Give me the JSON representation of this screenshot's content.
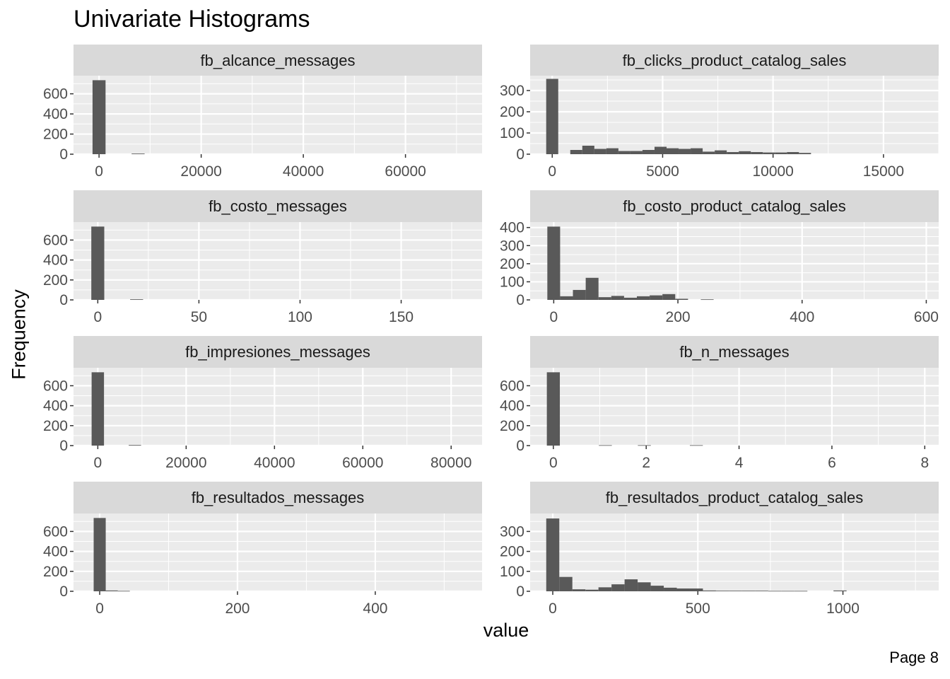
{
  "page": {
    "title": "Univariate Histograms",
    "page_label": "Page 8"
  },
  "chart_data": {
    "type": "bar",
    "title": "Univariate Histograms",
    "xlabel": "value",
    "ylabel": "Frequency",
    "layout": "4x2 facets",
    "facets": [
      {
        "name": "fb_alcance_messages",
        "xlim": [
          -5000,
          75000
        ],
        "ylim": [
          0,
          780
        ],
        "xticks": [
          0,
          20000,
          40000,
          60000
        ],
        "yticks": [
          0,
          200,
          400,
          600
        ],
        "bin_width": 2550,
        "bin_centers": [
          0,
          7650
        ],
        "counts": [
          735,
          6
        ]
      },
      {
        "name": "fb_clicks_product_catalog_sales",
        "xlim": [
          -1000,
          17500
        ],
        "ylim": [
          0,
          370
        ],
        "xticks": [
          0,
          5000,
          10000,
          15000
        ],
        "yticks": [
          0,
          100,
          200,
          300
        ],
        "bin_width": 545,
        "bin_centers": [
          0,
          545,
          1090,
          1635,
          2180,
          2725,
          3270,
          3815,
          4360,
          4905,
          5450,
          5995,
          6540,
          7085,
          7630,
          8175,
          8720,
          9265,
          9810,
          10355,
          10900,
          11445
        ],
        "counts": [
          355,
          0,
          20,
          40,
          25,
          28,
          15,
          15,
          20,
          35,
          28,
          25,
          28,
          12,
          18,
          10,
          14,
          10,
          8,
          8,
          10,
          6
        ]
      },
      {
        "name": "fb_costo_messages",
        "xlim": [
          -12,
          190
        ],
        "ylim": [
          0,
          780
        ],
        "xticks": [
          0,
          50,
          100,
          150
        ],
        "yticks": [
          0,
          200,
          400,
          600
        ],
        "bin_width": 6.4,
        "bin_centers": [
          0,
          19.2
        ],
        "counts": [
          735,
          6
        ]
      },
      {
        "name": "fb_costo_product_catalog_sales",
        "xlim": [
          -38,
          620
        ],
        "ylim": [
          0,
          430
        ],
        "xticks": [
          0,
          200,
          400,
          600
        ],
        "yticks": [
          0,
          100,
          200,
          300,
          400
        ],
        "bin_width": 20.6,
        "bin_centers": [
          0,
          20.6,
          41.2,
          61.8,
          82.4,
          103,
          123.6,
          144.2,
          164.8,
          185.4,
          206,
          226.6,
          247.2
        ],
        "counts": [
          405,
          20,
          55,
          122,
          15,
          22,
          12,
          20,
          25,
          32,
          6,
          0,
          3
        ]
      },
      {
        "name": "fb_impresiones_messages",
        "xlim": [
          -5500,
          87000
        ],
        "ylim": [
          0,
          780
        ],
        "xticks": [
          0,
          20000,
          40000,
          60000,
          80000
        ],
        "yticks": [
          0,
          200,
          400,
          600
        ],
        "bin_width": 2800,
        "bin_centers": [
          0,
          8400
        ],
        "counts": [
          735,
          6
        ]
      },
      {
        "name": "fb_n_messages",
        "xlim": [
          -0.5,
          8.3
        ],
        "ylim": [
          0,
          780
        ],
        "xticks": [
          0,
          2,
          4,
          6,
          8
        ],
        "yticks": [
          0,
          200,
          400,
          600
        ],
        "bin_width": 0.28,
        "bin_centers": [
          0,
          1.12,
          1.96,
          3.08
        ],
        "counts": [
          735,
          4,
          4,
          4
        ]
      },
      {
        "name": "fb_resultados_messages",
        "xlim": [
          -38,
          555
        ],
        "ylim": [
          0,
          780
        ],
        "xticks": [
          0,
          200,
          400
        ],
        "yticks": [
          0,
          200,
          400,
          600
        ],
        "bin_width": 17.5,
        "bin_centers": [
          0,
          17.5,
          35
        ],
        "counts": [
          735,
          8,
          4
        ]
      },
      {
        "name": "fb_resultados_product_catalog_sales",
        "xlim": [
          -78,
          1330
        ],
        "ylim": [
          0,
          390
        ],
        "xticks": [
          0,
          500,
          1000
        ],
        "yticks": [
          0,
          100,
          200,
          300
        ],
        "bin_width": 45,
        "bin_centers": [
          0,
          45,
          90,
          135,
          180,
          225,
          270,
          315,
          360,
          405,
          450,
          495,
          540,
          585,
          630,
          675,
          720,
          765,
          810,
          855,
          900,
          945,
          990
        ],
        "counts": [
          365,
          72,
          10,
          8,
          20,
          35,
          60,
          45,
          28,
          18,
          14,
          14,
          4,
          3,
          3,
          3,
          3,
          2,
          2,
          2,
          0,
          0,
          4
        ]
      }
    ]
  }
}
